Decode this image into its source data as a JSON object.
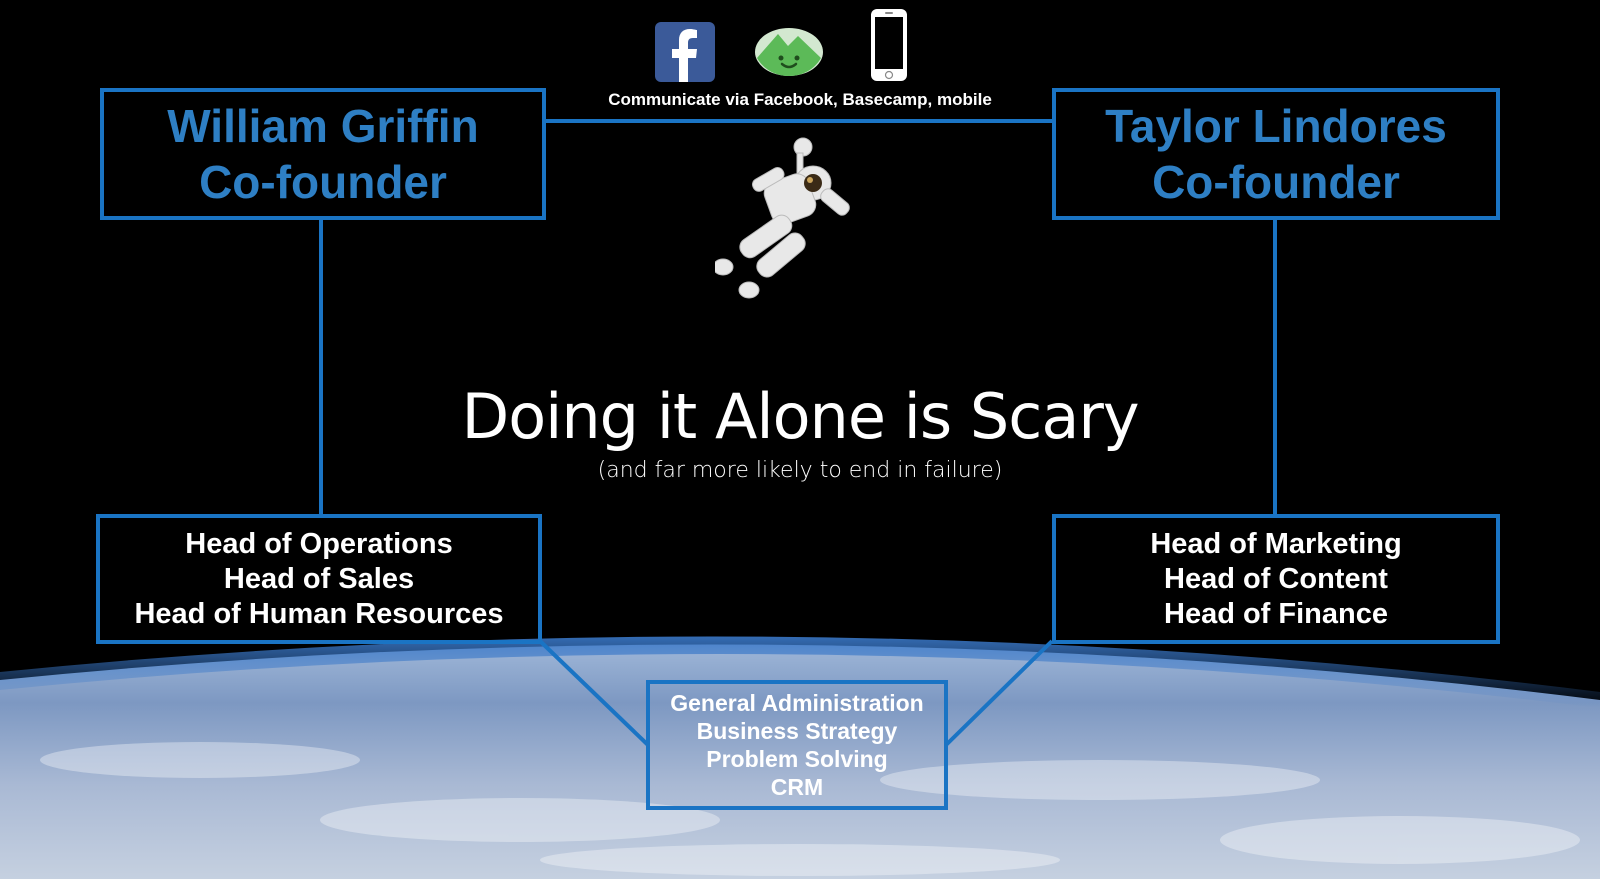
{
  "communication": {
    "caption": "Communicate via Facebook, Basecamp, mobile",
    "icons": [
      "facebook-icon",
      "basecamp-icon",
      "mobile-phone-icon"
    ]
  },
  "founders": [
    {
      "name": "William Griffin",
      "role": "Co-founder"
    },
    {
      "name": "Taylor Lindores",
      "role": "Co-founder"
    }
  ],
  "headline": "Doing it Alone is Scary",
  "subheadline": "(and far more likely to end in failure)",
  "left_roles": [
    "Head of Operations",
    "Head of Sales",
    "Head of Human Resources"
  ],
  "right_roles": [
    "Head of Marketing",
    "Head of Content",
    "Head of Finance"
  ],
  "shared_roles": [
    "General Administration",
    "Business Strategy",
    "Problem Solving",
    "CRM"
  ],
  "colors": {
    "accent": "#1a74c4",
    "founder_text": "#2e7fc4",
    "background": "#000000"
  }
}
